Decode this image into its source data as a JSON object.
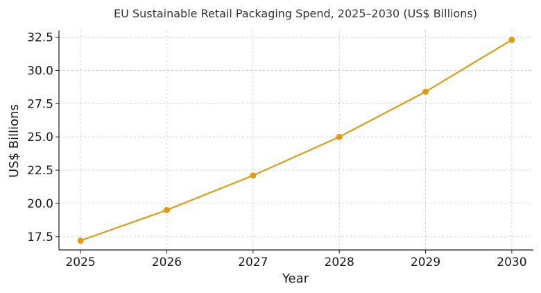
{
  "chart_data": {
    "type": "line",
    "title": "EU Sustainable Retail Packaging Spend, 2025–2030 (US$ Billions)",
    "xlabel": "Year",
    "ylabel": "US$ Billions",
    "x": [
      2025,
      2026,
      2027,
      2028,
      2029,
      2030
    ],
    "x_tick_labels": [
      "2025",
      "2026",
      "2027",
      "2028",
      "2029",
      "2030"
    ],
    "series": [
      {
        "values": [
          17.2,
          19.5,
          22.1,
          25.0,
          28.4,
          32.3
        ],
        "color": "#e09b12"
      }
    ],
    "y_ticks": [
      17.5,
      20.0,
      22.5,
      25.0,
      27.5,
      30.0,
      32.5
    ],
    "y_tick_labels": [
      "17.5",
      "20.0",
      "22.5",
      "25.0",
      "27.5",
      "30.0",
      "32.5"
    ],
    "ylim": [
      16.5,
      33.0
    ],
    "xlim": [
      2024.75,
      2030.25
    ],
    "grid": true,
    "marker": "circle"
  }
}
